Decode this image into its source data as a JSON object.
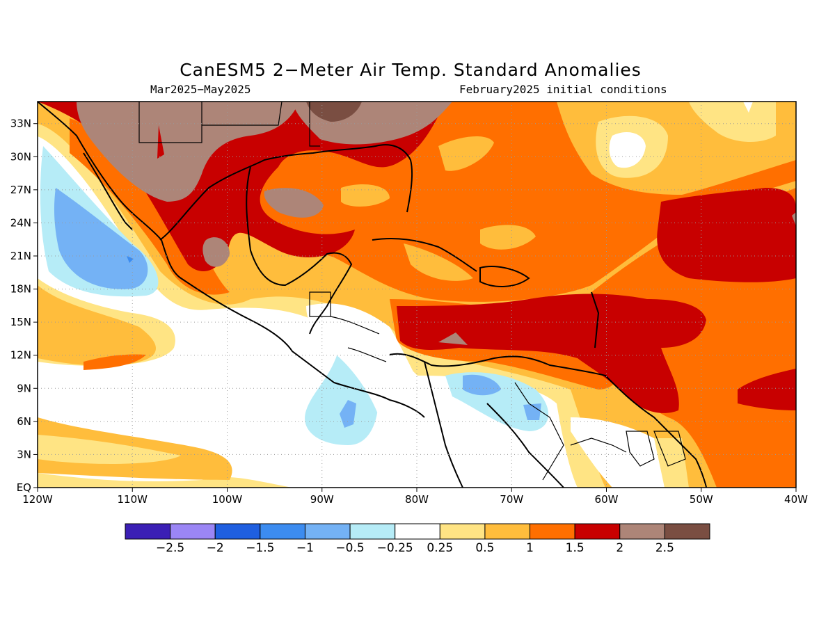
{
  "title": "CanESM5 2−Meter Air Temp. Standard Anomalies",
  "subtitle_left": "Mar2025−May2025",
  "subtitle_right": "February2025 initial conditions",
  "map": {
    "lon_ticks": [
      "120W",
      "110W",
      "100W",
      "90W",
      "80W",
      "70W",
      "60W",
      "50W",
      "40W"
    ],
    "lat_ticks": [
      "EQ",
      "3N",
      "6N",
      "9N",
      "12N",
      "15N",
      "18N",
      "21N",
      "24N",
      "27N",
      "30N",
      "33N"
    ],
    "lon_range": [
      -120,
      -40
    ],
    "lat_range": [
      0,
      35
    ],
    "grid": "dotted"
  },
  "colorbar": {
    "colors": [
      "#3b1fb5",
      "#9b86f5",
      "#1f5fe0",
      "#3c8cf0",
      "#74b2f5",
      "#b6ecf7",
      "#ffffff",
      "#ffe484",
      "#ffbd3c",
      "#ff6f00",
      "#c80000",
      "#ad8578",
      "#7a4e42"
    ],
    "labels": [
      "−2.5",
      "−2",
      "−1.5",
      "−1",
      "−0.5",
      "−0.25",
      "0.25",
      "0.5",
      "1",
      "1.5",
      "2",
      "2.5"
    ]
  }
}
